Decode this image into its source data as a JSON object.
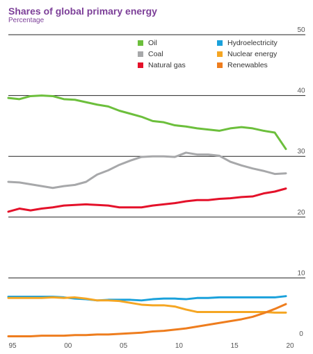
{
  "title": "Shares of global primary energy",
  "subtitle": "Percentage",
  "chart_data": {
    "type": "line",
    "title": "Shares of global primary energy",
    "ylabel": "Percentage",
    "xlabel": "",
    "x": [
      1995,
      1996,
      1997,
      1998,
      1999,
      2000,
      2001,
      2002,
      2003,
      2004,
      2005,
      2006,
      2007,
      2008,
      2009,
      2010,
      2011,
      2012,
      2013,
      2014,
      2015,
      2016,
      2017,
      2018,
      2019,
      2020
    ],
    "x_tick_labels": [
      "95",
      "00",
      "05",
      "10",
      "15",
      "20"
    ],
    "x_ticks": [
      1995,
      2000,
      2005,
      2010,
      2015,
      2020
    ],
    "ylim": [
      0,
      50
    ],
    "yticks": [
      0,
      10,
      20,
      30,
      40,
      50
    ],
    "grid": true,
    "legend_position": "top-right",
    "series": [
      {
        "name": "Oil",
        "color": "#6cbf3c",
        "values": [
          39.6,
          39.4,
          39.9,
          40.0,
          39.9,
          39.4,
          39.3,
          38.9,
          38.5,
          38.2,
          37.5,
          37.0,
          36.5,
          35.8,
          35.6,
          35.1,
          34.9,
          34.6,
          34.4,
          34.2,
          34.6,
          34.8,
          34.6,
          34.2,
          33.9,
          31.2
        ]
      },
      {
        "name": "Coal",
        "color": "#a7a8aa",
        "values": [
          25.8,
          25.7,
          25.4,
          25.1,
          24.8,
          25.1,
          25.3,
          25.8,
          27.0,
          27.7,
          28.6,
          29.3,
          29.9,
          30.0,
          30.0,
          29.9,
          30.6,
          30.3,
          30.3,
          30.1,
          29.1,
          28.5,
          28.0,
          27.6,
          27.1,
          27.2
        ]
      },
      {
        "name": "Natural gas",
        "color": "#e4112a",
        "values": [
          20.9,
          21.4,
          21.1,
          21.4,
          21.6,
          21.9,
          22.0,
          22.1,
          22.0,
          21.9,
          21.6,
          21.6,
          21.6,
          21.9,
          22.1,
          22.3,
          22.6,
          22.8,
          22.8,
          23.0,
          23.1,
          23.3,
          23.4,
          23.9,
          24.2,
          24.7
        ]
      },
      {
        "name": "Hydroelectricity",
        "color": "#1aa1db",
        "values": [
          6.9,
          6.9,
          6.9,
          6.9,
          6.9,
          6.8,
          6.6,
          6.5,
          6.3,
          6.4,
          6.4,
          6.4,
          6.3,
          6.5,
          6.6,
          6.6,
          6.5,
          6.7,
          6.7,
          6.8,
          6.8,
          6.8,
          6.8,
          6.8,
          6.8,
          7.0
        ]
      },
      {
        "name": "Nuclear energy",
        "color": "#f5a623",
        "values": [
          6.7,
          6.7,
          6.7,
          6.7,
          6.8,
          6.7,
          6.8,
          6.6,
          6.3,
          6.3,
          6.2,
          5.9,
          5.6,
          5.5,
          5.5,
          5.3,
          4.8,
          4.4,
          4.4,
          4.4,
          4.4,
          4.4,
          4.4,
          4.4,
          4.3,
          4.3
        ]
      },
      {
        "name": "Renewables",
        "color": "#ee7d1e",
        "values": [
          0.4,
          0.4,
          0.4,
          0.5,
          0.5,
          0.5,
          0.6,
          0.6,
          0.7,
          0.7,
          0.8,
          0.9,
          1.0,
          1.2,
          1.3,
          1.5,
          1.7,
          2.0,
          2.3,
          2.6,
          2.9,
          3.2,
          3.6,
          4.2,
          4.9,
          5.7
        ]
      }
    ]
  }
}
